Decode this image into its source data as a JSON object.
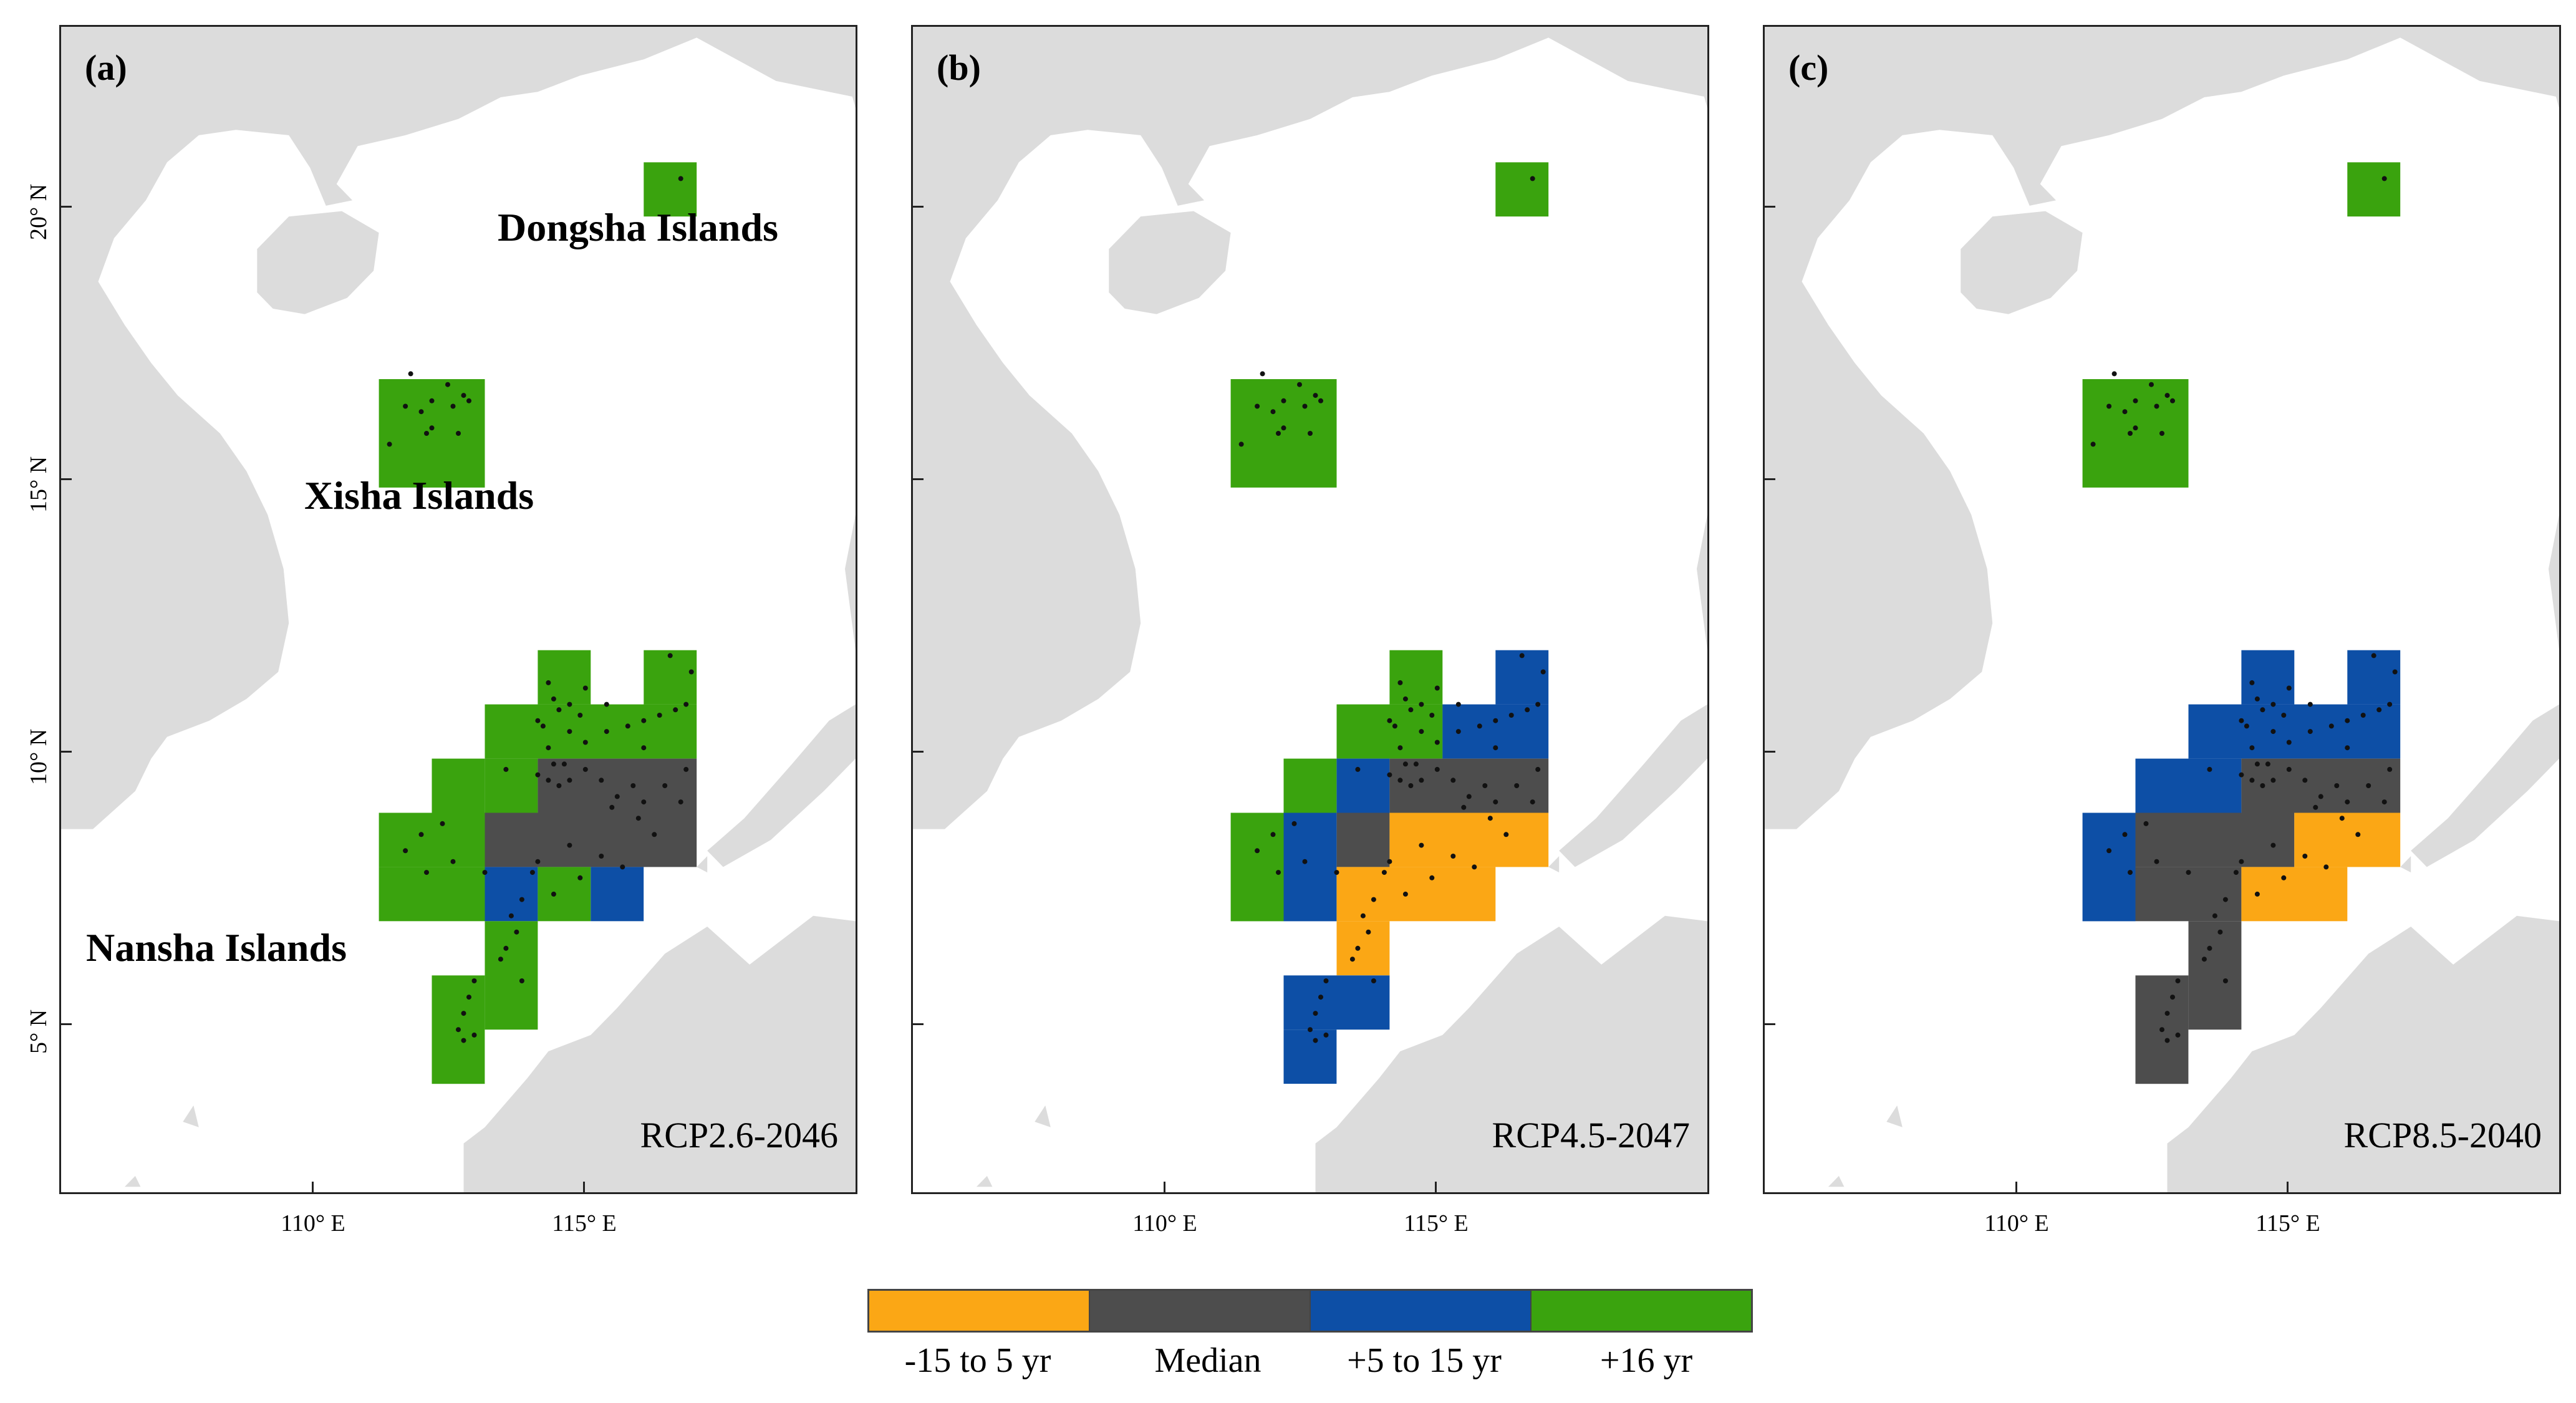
{
  "colors": {
    "land": "#dcdcdc",
    "sea": "#ffffff",
    "dot": "#111111",
    "cat_-15_5": "#fba715",
    "cat_median": "#4d4d4d",
    "cat_5_15": "#0d4fa6",
    "cat_16": "#3aa30e"
  },
  "axes": {
    "y_labels": [
      "20° N",
      "15° N",
      "10° N",
      "5° N"
    ],
    "x_labels": [
      "110° E",
      "115° E"
    ],
    "lon_range": [
      105,
      120
    ],
    "lat_range": [
      2,
      23.5
    ]
  },
  "islands": {
    "dongsha": "Dongsha Islands",
    "xisha": "Xisha Islands",
    "nansha": "Nansha Islands"
  },
  "panels": [
    {
      "id": "a",
      "label": "(a)",
      "scenario": "RCP2.6-2046",
      "cells": [
        {
          "lon": 116,
          "lat": 20,
          "cat": "cat_16",
          "w": 1,
          "h": 1
        },
        {
          "lon": 111,
          "lat": 15,
          "cat": "cat_16",
          "w": 2,
          "h": 2
        },
        {
          "lon": 114,
          "lat": 11,
          "cat": "cat_16",
          "w": 1,
          "h": 1
        },
        {
          "lon": 116,
          "lat": 11,
          "cat": "cat_16",
          "w": 1,
          "h": 1
        },
        {
          "lon": 113,
          "lat": 10,
          "cat": "cat_16",
          "w": 4,
          "h": 1
        },
        {
          "lon": 112,
          "lat": 9,
          "cat": "cat_16",
          "w": 1,
          "h": 1
        },
        {
          "lon": 113,
          "lat": 9,
          "cat": "cat_16",
          "w": 1,
          "h": 1
        },
        {
          "lon": 114,
          "lat": 9,
          "cat": "cat_median",
          "w": 3,
          "h": 1
        },
        {
          "lon": 111,
          "lat": 8,
          "cat": "cat_16",
          "w": 2,
          "h": 1
        },
        {
          "lon": 113,
          "lat": 8,
          "cat": "cat_median",
          "w": 4,
          "h": 1
        },
        {
          "lon": 111,
          "lat": 7,
          "cat": "cat_16",
          "w": 2,
          "h": 1
        },
        {
          "lon": 113,
          "lat": 7,
          "cat": "cat_5_15",
          "w": 1,
          "h": 1
        },
        {
          "lon": 114,
          "lat": 7,
          "cat": "cat_16",
          "w": 1,
          "h": 1
        },
        {
          "lon": 115,
          "lat": 7,
          "cat": "cat_5_15",
          "w": 1,
          "h": 1
        },
        {
          "lon": 113,
          "lat": 5,
          "cat": "cat_16",
          "w": 1,
          "h": 2
        },
        {
          "lon": 112,
          "lat": 4,
          "cat": "cat_16",
          "w": 1,
          "h": 2
        }
      ]
    },
    {
      "id": "b",
      "label": "(b)",
      "scenario": "RCP4.5-2047",
      "cells": [
        {
          "lon": 116,
          "lat": 20,
          "cat": "cat_16",
          "w": 1,
          "h": 1
        },
        {
          "lon": 111,
          "lat": 15,
          "cat": "cat_16",
          "w": 2,
          "h": 2
        },
        {
          "lon": 114,
          "lat": 11,
          "cat": "cat_16",
          "w": 1,
          "h": 1
        },
        {
          "lon": 116,
          "lat": 11,
          "cat": "cat_5_15",
          "w": 1,
          "h": 1
        },
        {
          "lon": 113,
          "lat": 10,
          "cat": "cat_16",
          "w": 2,
          "h": 1
        },
        {
          "lon": 115,
          "lat": 10,
          "cat": "cat_5_15",
          "w": 2,
          "h": 1
        },
        {
          "lon": 112,
          "lat": 9,
          "cat": "cat_16",
          "w": 1,
          "h": 1
        },
        {
          "lon": 113,
          "lat": 9,
          "cat": "cat_5_15",
          "w": 1,
          "h": 1
        },
        {
          "lon": 114,
          "lat": 9,
          "cat": "cat_median",
          "w": 3,
          "h": 1
        },
        {
          "lon": 111,
          "lat": 7,
          "cat": "cat_16",
          "w": 1,
          "h": 2
        },
        {
          "lon": 112,
          "lat": 7,
          "cat": "cat_5_15",
          "w": 1,
          "h": 2
        },
        {
          "lon": 113,
          "lat": 8,
          "cat": "cat_median",
          "w": 1,
          "h": 1
        },
        {
          "lon": 114,
          "lat": 8,
          "cat": "cat_-15_5",
          "w": 3,
          "h": 1
        },
        {
          "lon": 113,
          "lat": 7,
          "cat": "cat_-15_5",
          "w": 3,
          "h": 1
        },
        {
          "lon": 113,
          "lat": 6,
          "cat": "cat_-15_5",
          "w": 1,
          "h": 1
        },
        {
          "lon": 112,
          "lat": 5,
          "cat": "cat_5_15",
          "w": 2,
          "h": 1
        },
        {
          "lon": 112,
          "lat": 4,
          "cat": "cat_5_15",
          "w": 1,
          "h": 1
        }
      ]
    },
    {
      "id": "c",
      "label": "(c)",
      "scenario": "RCP8.5-2040",
      "cells": [
        {
          "lon": 116,
          "lat": 20,
          "cat": "cat_16",
          "w": 1,
          "h": 1
        },
        {
          "lon": 111,
          "lat": 15,
          "cat": "cat_16",
          "w": 2,
          "h": 2
        },
        {
          "lon": 114,
          "lat": 11,
          "cat": "cat_5_15",
          "w": 1,
          "h": 1
        },
        {
          "lon": 116,
          "lat": 11,
          "cat": "cat_5_15",
          "w": 1,
          "h": 1
        },
        {
          "lon": 113,
          "lat": 10,
          "cat": "cat_5_15",
          "w": 4,
          "h": 1
        },
        {
          "lon": 112,
          "lat": 9,
          "cat": "cat_5_15",
          "w": 2,
          "h": 1
        },
        {
          "lon": 114,
          "lat": 9,
          "cat": "cat_median",
          "w": 3,
          "h": 1
        },
        {
          "lon": 111,
          "lat": 7,
          "cat": "cat_5_15",
          "w": 1,
          "h": 2
        },
        {
          "lon": 112,
          "lat": 8,
          "cat": "cat_median",
          "w": 3,
          "h": 1
        },
        {
          "lon": 115,
          "lat": 8,
          "cat": "cat_-15_5",
          "w": 2,
          "h": 1
        },
        {
          "lon": 112,
          "lat": 7,
          "cat": "cat_median",
          "w": 2,
          "h": 1
        },
        {
          "lon": 114,
          "lat": 7,
          "cat": "cat_-15_5",
          "w": 2,
          "h": 1
        },
        {
          "lon": 113,
          "lat": 5,
          "cat": "cat_median",
          "w": 1,
          "h": 2
        },
        {
          "lon": 112,
          "lat": 4,
          "cat": "cat_median",
          "w": 1,
          "h": 2
        }
      ]
    }
  ],
  "legend": {
    "items": [
      {
        "cat": "cat_-15_5",
        "label": "-15 to 5 yr"
      },
      {
        "cat": "cat_median",
        "label": "Median"
      },
      {
        "cat": "cat_5_15",
        "label": "+5  to 15 yr"
      },
      {
        "cat": "cat_16",
        "label": "+16 yr"
      }
    ]
  }
}
